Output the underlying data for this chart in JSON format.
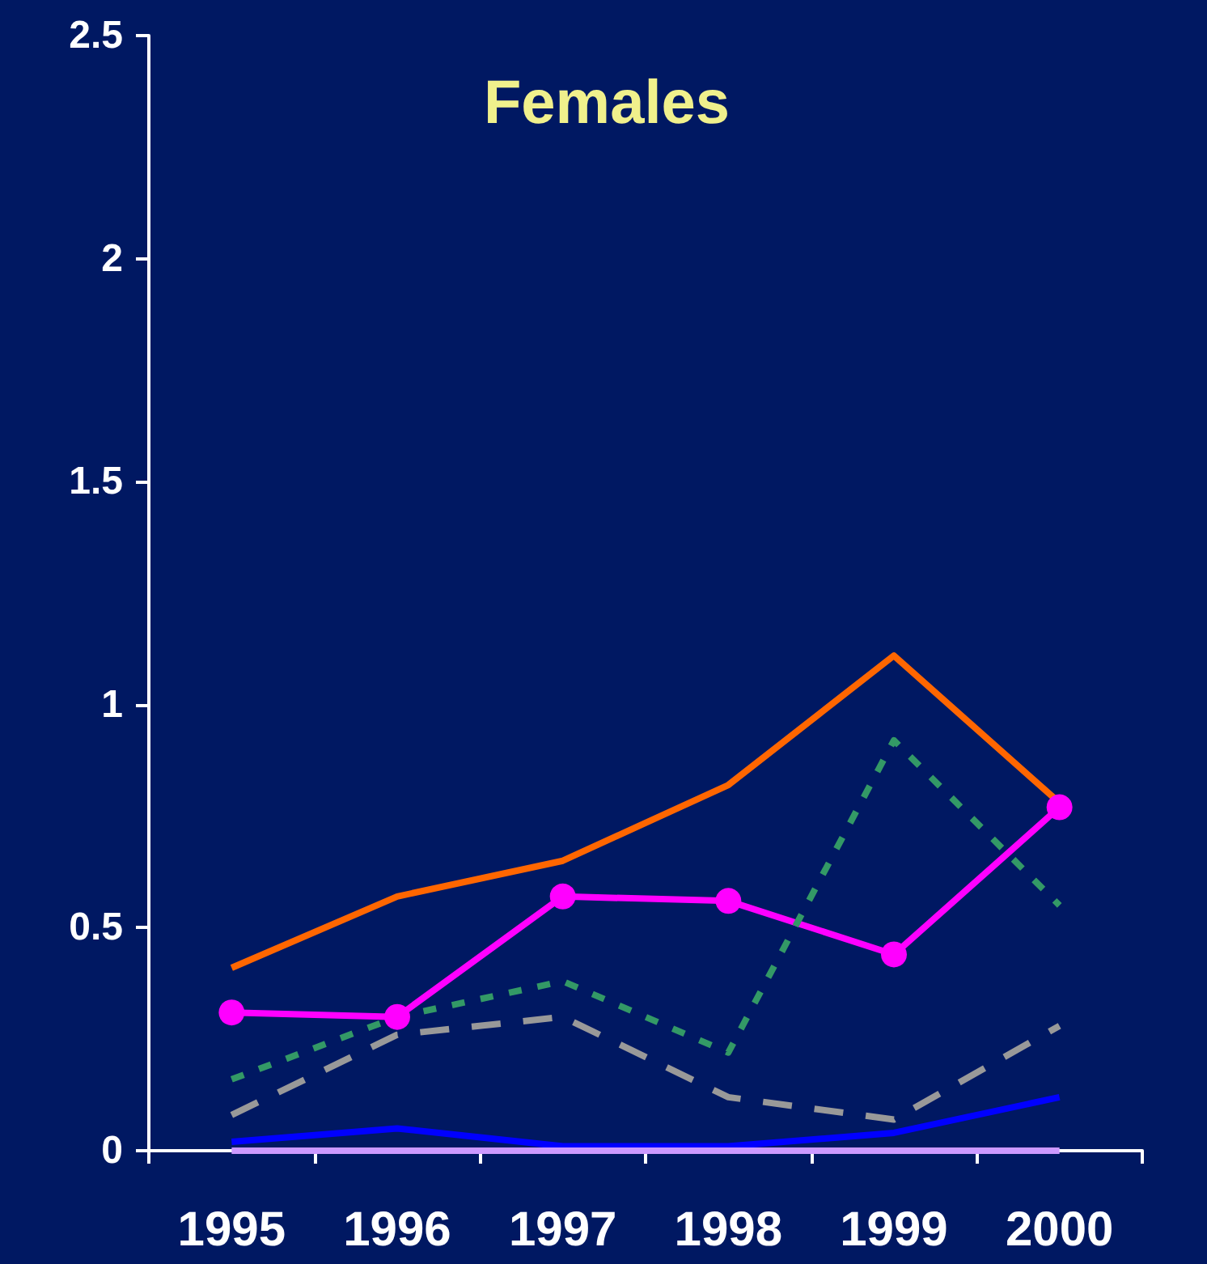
{
  "chart_data": {
    "type": "line",
    "title": "Females",
    "categories": [
      "1995",
      "1996",
      "1997",
      "1998",
      "1999",
      "2000"
    ],
    "series": [
      {
        "color": "#ff6600",
        "line_style": "solid",
        "marker": "none",
        "values": [
          0.41,
          0.57,
          0.65,
          0.82,
          1.11,
          0.78
        ]
      },
      {
        "color": "#ff00ff",
        "line_style": "solid",
        "marker": "circle",
        "values": [
          0.31,
          0.3,
          0.57,
          0.56,
          0.44,
          0.77
        ]
      },
      {
        "color": "#339966",
        "line_style": "dotted",
        "marker": "none",
        "values": [
          0.16,
          0.3,
          0.38,
          0.22,
          0.92,
          0.55
        ]
      },
      {
        "color": "#999999",
        "line_style": "dashed",
        "marker": "none",
        "values": [
          0.08,
          0.26,
          0.3,
          0.12,
          0.07,
          0.28
        ]
      },
      {
        "color": "#0000ff",
        "line_style": "solid",
        "marker": "none",
        "values": [
          0.02,
          0.05,
          0.01,
          0.01,
          0.04,
          0.12
        ]
      },
      {
        "color": "#cc99ff",
        "line_style": "solid",
        "marker": "none",
        "values": [
          0,
          0,
          0,
          0,
          0,
          0
        ]
      }
    ],
    "ylim": [
      0,
      2.5
    ],
    "yticks": [
      0,
      0.5,
      1,
      1.5,
      2,
      2.5
    ]
  }
}
